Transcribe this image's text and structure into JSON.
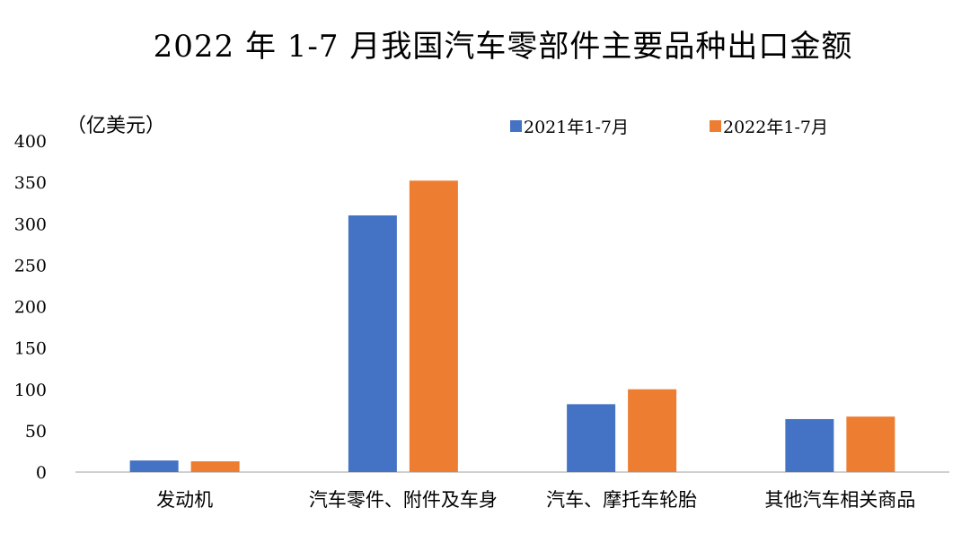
{
  "chart_data": {
    "type": "bar",
    "title": "2022 年 1-7 月我国汽车零部件主要品种出口金额",
    "ylabel": "（亿美元）",
    "xlabel": "",
    "categories": [
      "发动机",
      "汽车零件、附件及车身",
      "汽车、摩托车轮胎",
      "其他汽车相关商品"
    ],
    "series": [
      {
        "name": "2021年1-7月",
        "color": "#4472C4",
        "values": [
          14,
          310,
          82,
          64
        ]
      },
      {
        "name": "2022年1-7月",
        "color": "#ED7D31",
        "values": [
          13,
          352,
          100,
          67
        ]
      }
    ],
    "ylim": [
      0,
      400
    ],
    "yticks": [
      0,
      50,
      100,
      150,
      200,
      250,
      300,
      350,
      400
    ],
    "grid": false,
    "legend_position": "top-right"
  }
}
